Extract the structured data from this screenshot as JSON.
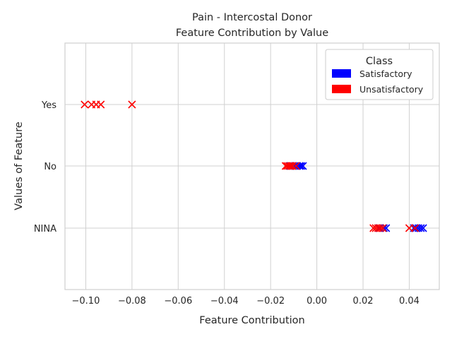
{
  "chart_data": {
    "type": "scatter",
    "title_lines": [
      "Pain - Intercostal Donor",
      "Feature Contribution by Value"
    ],
    "xlabel": "Feature Contribution",
    "ylabel": "Values of Feature",
    "xlim": [
      -0.109,
      0.053
    ],
    "xticks": [
      -0.1,
      -0.08,
      -0.06,
      -0.04,
      -0.02,
      0.0,
      0.02,
      0.04
    ],
    "xtick_labels": [
      "−0.10",
      "−0.08",
      "−0.06",
      "−0.04",
      "−0.02",
      "0.00",
      "0.02",
      "0.04"
    ],
    "categories": [
      "Yes",
      "No",
      "NINA"
    ],
    "grid": true,
    "marker": "x",
    "legend": {
      "title": "Class",
      "position": "top-right"
    },
    "series": [
      {
        "name": "Satisfactory",
        "color": "#0000ff",
        "points": [
          {
            "category": "No",
            "x": -0.0115
          },
          {
            "category": "No",
            "x": -0.0105
          },
          {
            "category": "No",
            "x": -0.0095
          },
          {
            "category": "No",
            "x": -0.0085
          },
          {
            "category": "No",
            "x": -0.0075
          },
          {
            "category": "No",
            "x": -0.0068
          },
          {
            "category": "No",
            "x": -0.006
          },
          {
            "category": "NINA",
            "x": 0.027
          },
          {
            "category": "NINA",
            "x": 0.029
          },
          {
            "category": "NINA",
            "x": 0.03
          },
          {
            "category": "NINA",
            "x": 0.042
          },
          {
            "category": "NINA",
            "x": 0.043
          },
          {
            "category": "NINA",
            "x": 0.044
          },
          {
            "category": "NINA",
            "x": 0.045
          },
          {
            "category": "NINA",
            "x": 0.046
          }
        ]
      },
      {
        "name": "Unsatisfactory",
        "color": "#ff0000",
        "points": [
          {
            "category": "Yes",
            "x": -0.1005
          },
          {
            "category": "Yes",
            "x": -0.0975
          },
          {
            "category": "Yes",
            "x": -0.0955
          },
          {
            "category": "Yes",
            "x": -0.0935
          },
          {
            "category": "Yes",
            "x": -0.08
          },
          {
            "category": "No",
            "x": -0.0135
          },
          {
            "category": "No",
            "x": -0.0128
          },
          {
            "category": "No",
            "x": -0.012
          },
          {
            "category": "No",
            "x": -0.0112
          },
          {
            "category": "No",
            "x": -0.0105
          },
          {
            "category": "No",
            "x": -0.009
          },
          {
            "category": "NINA",
            "x": 0.0245
          },
          {
            "category": "NINA",
            "x": 0.0255
          },
          {
            "category": "NINA",
            "x": 0.0265
          },
          {
            "category": "NINA",
            "x": 0.0275
          },
          {
            "category": "NINA",
            "x": 0.0285
          },
          {
            "category": "NINA",
            "x": 0.04
          },
          {
            "category": "NINA",
            "x": 0.0425
          }
        ]
      }
    ]
  }
}
